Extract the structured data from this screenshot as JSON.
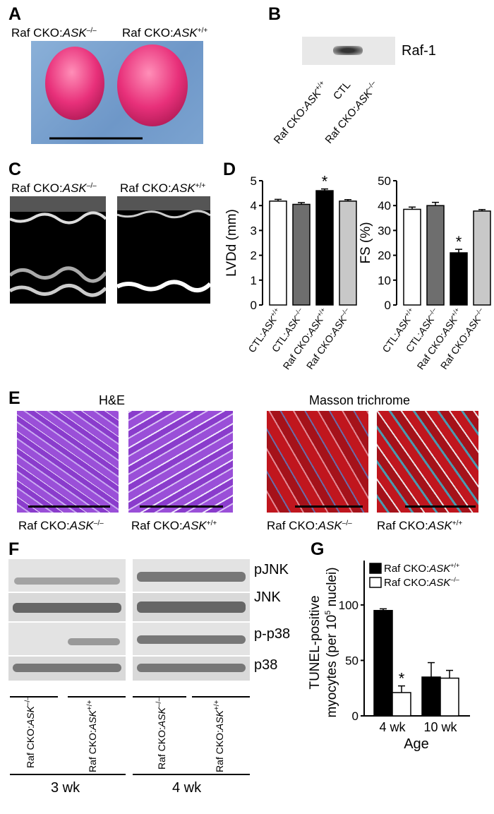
{
  "panelA": {
    "letter": "A",
    "label_left_pre": "Raf CKO:",
    "label_left_gene": "ASK",
    "label_left_sup": "–/–",
    "label_right_pre": "Raf CKO:",
    "label_right_gene": "ASK",
    "label_right_sup": "+/+"
  },
  "panelB": {
    "letter": "B",
    "band_label": "Raf-1",
    "lanes": [
      {
        "pre": "Raf CKO:",
        "gene": "ASK",
        "sup": "+/+"
      },
      {
        "pre": "CTL",
        "gene": "",
        "sup": ""
      },
      {
        "pre": "Raf CKO:",
        "gene": "ASK",
        "sup": "–/–"
      }
    ]
  },
  "panelC": {
    "letter": "C",
    "label_left_pre": "Raf CKO:",
    "label_left_gene": "ASK",
    "label_left_sup": "–/–",
    "label_right_pre": "Raf CKO:",
    "label_right_gene": "ASK",
    "label_right_sup": "+/+"
  },
  "panelD": {
    "letter": "D"
  },
  "panelE": {
    "letter": "E",
    "he_title": "H&E",
    "masson_title": "Masson trichrome",
    "captions": [
      {
        "pre": "Raf CKO:",
        "gene": "ASK",
        "sup": "–/–"
      },
      {
        "pre": "Raf CKO:",
        "gene": "ASK",
        "sup": "+/+"
      },
      {
        "pre": "Raf CKO:",
        "gene": "ASK",
        "sup": "–/–"
      },
      {
        "pre": "Raf CKO:",
        "gene": "ASK",
        "sup": "+/+"
      }
    ]
  },
  "panelF": {
    "letter": "F",
    "row_labels": [
      "pJNK",
      "JNK",
      "p-p38",
      "p38"
    ],
    "lanes": [
      {
        "pre": "Raf CKO:",
        "gene": "ASK",
        "sup": "–/–"
      },
      {
        "pre": "Raf CKO:",
        "gene": "ASK",
        "sup": "+/+"
      },
      {
        "pre": "Raf CKO:",
        "gene": "ASK",
        "sup": "–/–"
      },
      {
        "pre": "Raf CKO:",
        "gene": "ASK",
        "sup": "+/+"
      }
    ],
    "group_3wk": "3 wk",
    "group_4wk": "4 wk"
  },
  "panelG": {
    "letter": "G"
  },
  "chart_data": [
    {
      "type": "bar",
      "id": "D-LVDd",
      "ylabel": "LVDd (mm)",
      "ylim": [
        0,
        5
      ],
      "yticks": [
        0,
        1,
        2,
        3,
        4,
        5
      ],
      "categories": [
        "CTL:ASK+/+",
        "CTL:ASK–/–",
        "Raf CKO:ASK+/+",
        "Raf CKO:ASK–/–"
      ],
      "values": [
        4.18,
        4.05,
        4.6,
        4.18
      ],
      "errors": [
        0.07,
        0.07,
        0.07,
        0.06
      ],
      "colors": [
        "#ffffff",
        "#6e6e6e",
        "#000000",
        "#c8c8c8"
      ],
      "significance": [
        "",
        "",
        "*",
        ""
      ]
    },
    {
      "type": "bar",
      "id": "D-FS",
      "ylabel": "FS (%)",
      "ylim": [
        0,
        50
      ],
      "yticks": [
        0,
        10,
        20,
        30,
        40,
        50
      ],
      "categories": [
        "CTL:ASK+/+",
        "CTL:ASK–/–",
        "Raf CKO:ASK+/+",
        "Raf CKO:ASK–/–"
      ],
      "values": [
        38.5,
        40,
        21,
        37.8
      ],
      "errors": [
        0.9,
        1.3,
        1.4,
        0.6
      ],
      "colors": [
        "#ffffff",
        "#6e6e6e",
        "#000000",
        "#c8c8c8"
      ],
      "significance": [
        "",
        "",
        "*",
        ""
      ]
    },
    {
      "type": "bar",
      "id": "G-TUNEL",
      "ylabel_line1": "TUNEL-positive",
      "ylabel_line2": "myocytes (per 10",
      "ylabel_sup": "5",
      "ylabel_line2_end": " nuclei)",
      "xlabel": "Age",
      "ylim": [
        0,
        140
      ],
      "yticks": [
        0,
        50,
        100
      ],
      "categories": [
        "4 wk",
        "10 wk"
      ],
      "series": [
        {
          "name_pre": "Raf CKO:",
          "name_gene": "ASK",
          "name_sup": "+/+",
          "color": "#000000",
          "values": [
            95,
            35
          ],
          "errors": [
            1.5,
            13
          ]
        },
        {
          "name_pre": "Raf CKO:",
          "name_gene": "ASK",
          "name_sup": "–/–",
          "color": "#ffffff",
          "values": [
            21,
            34
          ],
          "errors": [
            6,
            7
          ]
        }
      ],
      "significance": [
        [
          "",
          "*"
        ],
        [
          "",
          ""
        ]
      ]
    }
  ]
}
